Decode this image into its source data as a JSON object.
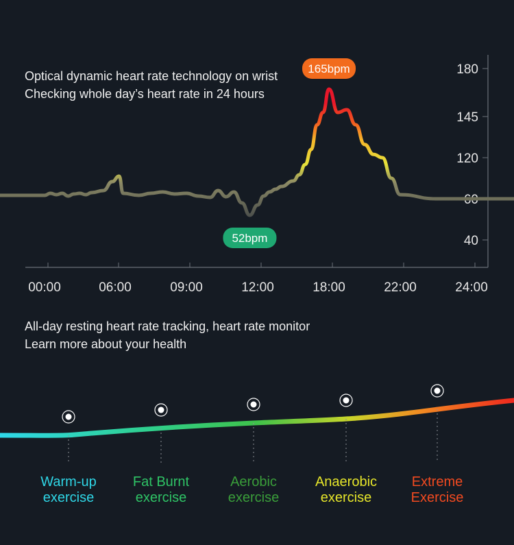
{
  "intro": {
    "line1": "Optical dynamic heart rate technology on wrist",
    "line2": "Checking whole day’s heart rate in 24 hours"
  },
  "chart_data": {
    "type": "line",
    "x_ticks": [
      "00:00",
      "06:00",
      "09:00",
      "12:00",
      "18:00",
      "22:00",
      "24:00"
    ],
    "y_ticks": [
      "180",
      "145",
      "120",
      "60",
      "40"
    ],
    "series": [
      {
        "values": [
          [
            "00:00",
            65
          ],
          [
            "00:30",
            68
          ],
          [
            "01:00",
            66
          ],
          [
            "01:30",
            68
          ],
          [
            "02:00",
            64
          ],
          [
            "02:30",
            67
          ],
          [
            "03:00",
            68
          ],
          [
            "03:30",
            66
          ],
          [
            "04:00",
            69
          ],
          [
            "05:00",
            72
          ],
          [
            "05:45",
            85
          ],
          [
            "06:10",
            93
          ],
          [
            "06:20",
            68
          ],
          [
            "07:00",
            65
          ],
          [
            "07:30",
            68
          ],
          [
            "08:00",
            70
          ],
          [
            "08:30",
            67
          ],
          [
            "09:00",
            68
          ],
          [
            "09:30",
            64
          ],
          [
            "10:00",
            62
          ],
          [
            "10:20",
            72
          ],
          [
            "10:40",
            63
          ],
          [
            "11:00",
            70
          ],
          [
            "11:20",
            58
          ],
          [
            "11:40",
            52
          ],
          [
            "12:00",
            57
          ],
          [
            "12:30",
            64
          ],
          [
            "13:00",
            70
          ],
          [
            "13:30",
            74
          ],
          [
            "14:00",
            78
          ],
          [
            "15:00",
            86
          ],
          [
            "15:30",
            95
          ],
          [
            "16:00",
            110
          ],
          [
            "16:30",
            125
          ],
          [
            "17:00",
            140
          ],
          [
            "17:30",
            148
          ],
          [
            "18:00",
            165
          ],
          [
            "18:30",
            148
          ],
          [
            "19:00",
            150
          ],
          [
            "19:30",
            140
          ],
          [
            "20:00",
            128
          ],
          [
            "20:30",
            122
          ],
          [
            "21:00",
            120
          ],
          [
            "21:30",
            90
          ],
          [
            "22:00",
            66
          ],
          [
            "23:00",
            60
          ],
          [
            "24:00",
            60
          ]
        ]
      }
    ],
    "annotations": [
      {
        "label": "165bpm",
        "time": "18:00",
        "value": 165,
        "color": "#f26b1d"
      },
      {
        "label": "52bpm",
        "time": "11:40",
        "value": 52,
        "color": "#1fa872"
      }
    ]
  },
  "resting": {
    "line1": "All-day resting heart rate tracking, heart rate monitor",
    "line2": "Learn more about your health"
  },
  "zones": [
    {
      "line1": "Warm-up",
      "line2": "exercise",
      "color": "#2fd6e6"
    },
    {
      "line1": "Fat Burnt",
      "line2": "exercise",
      "color": "#2fc466"
    },
    {
      "line1": "Aerobic",
      "line2": "exercise",
      "color": "#3a9e3a"
    },
    {
      "line1": "Anaerobic",
      "line2": "exercise",
      "color": "#e6e62a"
    },
    {
      "line1": "Extreme",
      "line2": "Exercise",
      "color": "#f24a20"
    }
  ]
}
